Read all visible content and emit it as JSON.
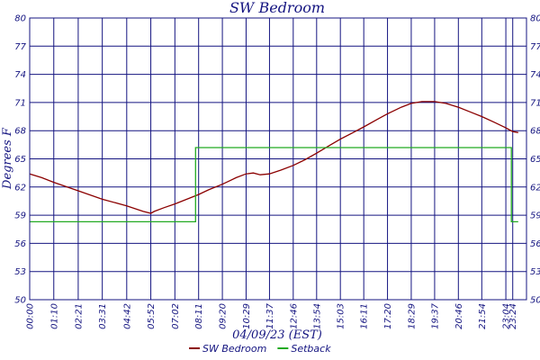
{
  "chart_data": {
    "type": "line",
    "title": "SW Bedroom",
    "xlabel": "04/09/23 (EST)",
    "ylabel": "Degrees F",
    "ylim": [
      50,
      80
    ],
    "yticks": [
      50,
      53,
      56,
      59,
      62,
      65,
      68,
      71,
      74,
      77,
      80
    ],
    "xlim": [
      0,
      1444
    ],
    "xticks": [
      {
        "label": "00:00",
        "min": 0
      },
      {
        "label": "01:10",
        "min": 70
      },
      {
        "label": "02:21",
        "min": 141
      },
      {
        "label": "03:31",
        "min": 211
      },
      {
        "label": "04:42",
        "min": 282
      },
      {
        "label": "05:52",
        "min": 352
      },
      {
        "label": "07:02",
        "min": 422
      },
      {
        "label": "08:11",
        "min": 491
      },
      {
        "label": "09:20",
        "min": 560
      },
      {
        "label": "10:29",
        "min": 629
      },
      {
        "label": "11:37",
        "min": 697
      },
      {
        "label": "12:46",
        "min": 766
      },
      {
        "label": "13:54",
        "min": 834
      },
      {
        "label": "15:03",
        "min": 903
      },
      {
        "label": "16:11",
        "min": 971
      },
      {
        "label": "17:20",
        "min": 1040
      },
      {
        "label": "18:29",
        "min": 1109
      },
      {
        "label": "19:37",
        "min": 1177
      },
      {
        "label": "20:46",
        "min": 1246
      },
      {
        "label": "21:54",
        "min": 1314
      },
      {
        "label": "23:04",
        "min": 1384
      },
      {
        "label": "23:24",
        "min": 1404
      }
    ],
    "grid": true,
    "legend_position": "bottom",
    "series": [
      {
        "name": "SW Bedroom",
        "color": "#8b0000",
        "points": [
          [
            0,
            63.4
          ],
          [
            35,
            63.0
          ],
          [
            70,
            62.5
          ],
          [
            141,
            61.6
          ],
          [
            211,
            60.7
          ],
          [
            282,
            60.0
          ],
          [
            330,
            59.4
          ],
          [
            352,
            59.2
          ],
          [
            362,
            59.4
          ],
          [
            390,
            59.8
          ],
          [
            422,
            60.2
          ],
          [
            491,
            61.2
          ],
          [
            520,
            61.7
          ],
          [
            560,
            62.3
          ],
          [
            600,
            63.0
          ],
          [
            629,
            63.4
          ],
          [
            650,
            63.5
          ],
          [
            670,
            63.3
          ],
          [
            697,
            63.4
          ],
          [
            730,
            63.8
          ],
          [
            766,
            64.3
          ],
          [
            800,
            64.9
          ],
          [
            834,
            65.6
          ],
          [
            870,
            66.4
          ],
          [
            903,
            67.1
          ],
          [
            940,
            67.8
          ],
          [
            971,
            68.4
          ],
          [
            1010,
            69.2
          ],
          [
            1040,
            69.8
          ],
          [
            1080,
            70.5
          ],
          [
            1109,
            70.9
          ],
          [
            1140,
            71.1
          ],
          [
            1177,
            71.1
          ],
          [
            1210,
            70.9
          ],
          [
            1246,
            70.5
          ],
          [
            1280,
            70.0
          ],
          [
            1314,
            69.5
          ],
          [
            1350,
            68.9
          ],
          [
            1384,
            68.3
          ],
          [
            1404,
            67.9
          ],
          [
            1420,
            67.8
          ]
        ]
      },
      {
        "name": "Setback",
        "color": "#22aa22",
        "points": [
          [
            0,
            58.3
          ],
          [
            482,
            58.3
          ],
          [
            482,
            66.2
          ],
          [
            1400,
            66.2
          ],
          [
            1400,
            58.3
          ],
          [
            1420,
            58.3
          ]
        ]
      }
    ]
  }
}
